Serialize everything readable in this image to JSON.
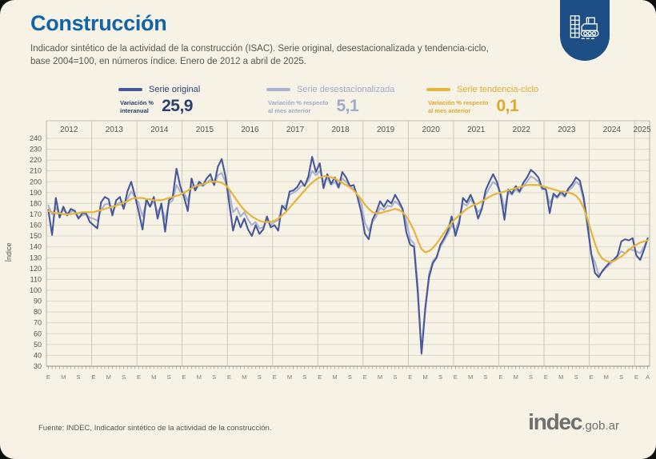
{
  "header": {
    "title": "Construcción",
    "subtitle_line1": "Indicador sintético de la actividad de la construcción (ISAC). Serie original, desestacionalizada y tendencia-ciclo,",
    "subtitle_line2": "base 2004=100, en números índice. Enero de 2012 a abril de 2025."
  },
  "badge": {
    "color": "#1d4f86",
    "icon": "construction-building-and-roller"
  },
  "legend": [
    {
      "name": "Serie original",
      "metric_line1": "Variación %",
      "metric_line2": "interanual",
      "value": "25,9",
      "color": "#46589b",
      "name_color": "#2e4470",
      "value_color": "#2a3f6e"
    },
    {
      "name": "Serie desestacionalizada",
      "metric_line1": "Variación % respecto",
      "metric_line2": "al mes anterior",
      "value": "5,1",
      "color": "#a9b2ce",
      "name_color": "#a3adc9",
      "value_color": "#9fabc8"
    },
    {
      "name": "Serie tendencia-ciclo",
      "metric_line1": "Variación % respecto",
      "metric_line2": "al mes anterior",
      "value": "0,1",
      "color": "#e5b43c",
      "name_color": "#e0ab30",
      "value_color": "#e0a82b"
    }
  ],
  "chart_data": {
    "type": "line",
    "title": "ISAC, serie original, desestacionalizada y tendencia-ciclo, base 2004=100",
    "ylabel": "Índice",
    "ylim": [
      30,
      240
    ],
    "ytick_step": 10,
    "grid": true,
    "years": [
      "2012",
      "2013",
      "2014",
      "2015",
      "2016",
      "2017",
      "2018",
      "2019",
      "2020",
      "2021",
      "2022",
      "2023",
      "2024",
      "2025"
    ],
    "month_tick_labels": {
      "letters": [
        "E",
        "M",
        "S"
      ],
      "month_positions": [
        0,
        4,
        8
      ],
      "final_year_letters": [
        "E",
        "A"
      ],
      "final_year_positions": [
        0,
        3
      ]
    },
    "x_start": "2012-01",
    "x_end": "2025-04",
    "series": [
      {
        "name": "Serie original",
        "color": "#46589b",
        "width": 2.1,
        "values": [
          174,
          151,
          185,
          167,
          177,
          169,
          175,
          173,
          166,
          171,
          171,
          163,
          160,
          157,
          181,
          186,
          184,
          169,
          183,
          186,
          175,
          191,
          200,
          187,
          172,
          156,
          184,
          177,
          186,
          166,
          180,
          154,
          183,
          186,
          212,
          196,
          186,
          173,
          203,
          192,
          200,
          197,
          203,
          207,
          197,
          214,
          221,
          205,
          180,
          155,
          168,
          158,
          166,
          156,
          150,
          160,
          152,
          156,
          168,
          158,
          160,
          155,
          178,
          174,
          191,
          192,
          195,
          201,
          196,
          205,
          223,
          209,
          217,
          194,
          207,
          198,
          204,
          195,
          209,
          204,
          196,
          197,
          186,
          172,
          152,
          147,
          165,
          172,
          182,
          177,
          183,
          180,
          188,
          182,
          175,
          153,
          142,
          140,
          98,
          42,
          83,
          112,
          125,
          130,
          142,
          148,
          155,
          168,
          150,
          162,
          185,
          181,
          188,
          180,
          166,
          175,
          192,
          200,
          207,
          200,
          187,
          165,
          193,
          189,
          196,
          191,
          199,
          204,
          211,
          208,
          204,
          194,
          193,
          171,
          189,
          186,
          191,
          187,
          194,
          198,
          204,
          201,
          186,
          162,
          134,
          116,
          112,
          118,
          122,
          126,
          128,
          132,
          145,
          147,
          146,
          148,
          132,
          128,
          137,
          148
        ]
      },
      {
        "name": "Serie desestacionalizada",
        "color": "#a9b2ce",
        "width": 2.1,
        "values": [
          178,
          170,
          176,
          170,
          174,
          171,
          172,
          174,
          167,
          169,
          170,
          167,
          166,
          164,
          174,
          179,
          180,
          172,
          179,
          181,
          176,
          184,
          191,
          186,
          180,
          168,
          181,
          177,
          182,
          172,
          178,
          165,
          180,
          183,
          197,
          191,
          190,
          182,
          197,
          192,
          197,
          196,
          199,
          202,
          197,
          206,
          208,
          200,
          190,
          172,
          176,
          168,
          172,
          165,
          160,
          163,
          157,
          158,
          165,
          160,
          163,
          165,
          177,
          178,
          188,
          190,
          192,
          196,
          197,
          201,
          210,
          206,
          210,
          200,
          203,
          197,
          200,
          194,
          203,
          200,
          196,
          193,
          188,
          180,
          162,
          155,
          163,
          168,
          176,
          174,
          178,
          177,
          182,
          179,
          174,
          163,
          147,
          143,
          105,
          41,
          85,
          115,
          127,
          131,
          140,
          146,
          152,
          160,
          155,
          165,
          180,
          178,
          184,
          179,
          172,
          176,
          188,
          194,
          200,
          197,
          190,
          175,
          190,
          188,
          193,
          190,
          196,
          200,
          205,
          203,
          200,
          193,
          193,
          180,
          187,
          185,
          189,
          186,
          192,
          195,
          200,
          197,
          183,
          158,
          133,
          126,
          114,
          117,
          121,
          124,
          128,
          131,
          136,
          134,
          138,
          137,
          136,
          134,
          140,
          147
        ]
      },
      {
        "name": "Serie tendencia-ciclo",
        "color": "#e5b43c",
        "width": 2.2,
        "values": [
          173,
          172,
          171,
          171,
          170,
          170,
          170,
          171,
          171,
          172,
          172,
          172,
          172,
          173,
          174,
          175,
          176,
          177,
          178,
          179,
          181,
          182,
          184,
          185,
          185,
          185,
          184,
          184,
          183,
          183,
          183,
          184,
          185,
          186,
          187,
          188,
          190,
          192,
          194,
          196,
          197,
          198,
          199,
          200,
          200,
          200,
          199,
          197,
          193,
          188,
          183,
          178,
          174,
          171,
          168,
          166,
          164,
          163,
          163,
          163,
          164,
          166,
          169,
          172,
          176,
          180,
          184,
          188,
          192,
          196,
          199,
          202,
          204,
          205,
          205,
          204,
          203,
          201,
          199,
          197,
          195,
          192,
          188,
          184,
          179,
          175,
          172,
          171,
          171,
          172,
          173,
          174,
          175,
          174,
          172,
          168,
          162,
          155,
          146,
          138,
          135,
          136,
          139,
          143,
          148,
          153,
          158,
          162,
          166,
          169,
          172,
          175,
          177,
          179,
          180,
          182,
          184,
          186,
          188,
          189,
          190,
          191,
          192,
          193,
          194,
          195,
          196,
          197,
          197,
          197,
          197,
          196,
          195,
          194,
          193,
          192,
          191,
          191,
          190,
          189,
          187,
          183,
          176,
          166,
          154,
          143,
          134,
          129,
          127,
          126,
          127,
          129,
          131,
          134,
          137,
          140,
          142,
          144,
          145,
          146
        ]
      }
    ]
  },
  "footer": {
    "source": "Fuente: INDEC, Indicador sintético de la actividad de la construcción.",
    "logo_main": "indec",
    "logo_suffix": ".gob.ar"
  }
}
